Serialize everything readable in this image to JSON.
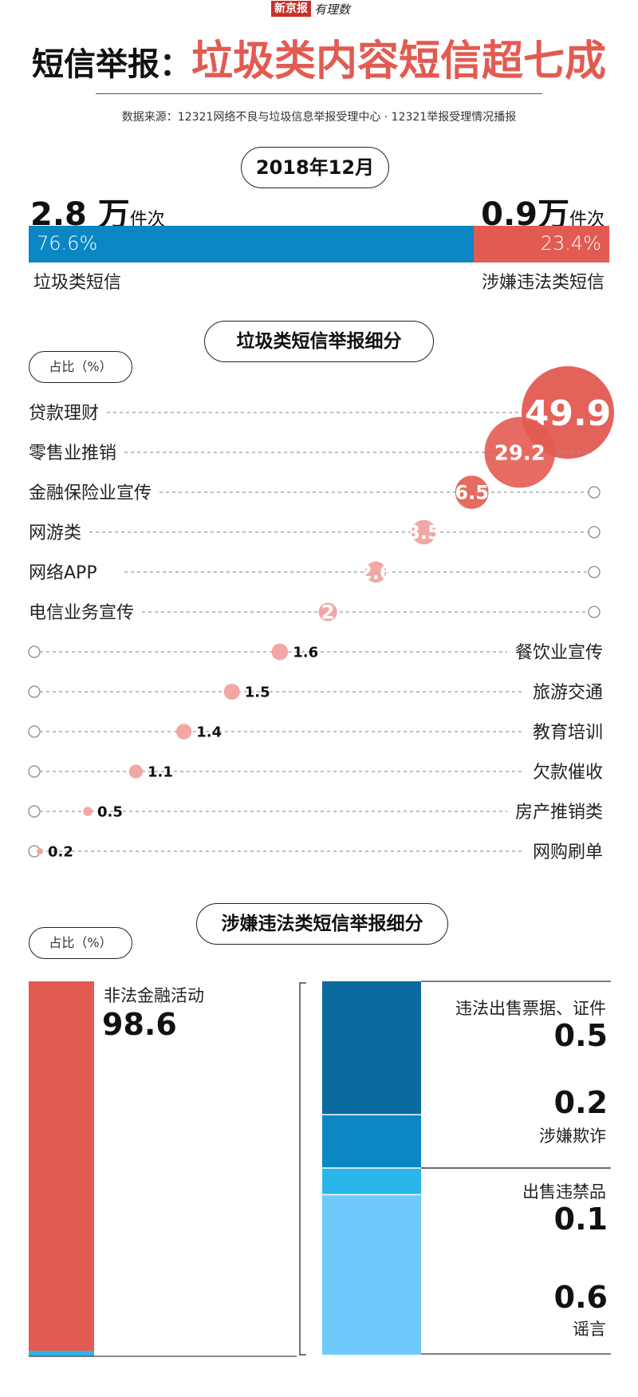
{
  "header": {
    "logo_text": "新京报",
    "logo_script": "有理数",
    "title_part1": "短信举报：",
    "title_part2": "垃圾类内容短信超七成",
    "source": "数据来源：12321网络不良与垃圾信息举报受理中心 · 12321举报受理情况播报",
    "date": "2018年12月"
  },
  "colors": {
    "spam": "#0a86c3",
    "illegal": "#e25b52",
    "bubble": "#e25b52",
    "bubble_light": "#f0a3a0",
    "dark_blue": "#0b6aa0",
    "mid_blue": "#0a86c3",
    "bright_blue": "#2ab6eb",
    "light_blue": "#6fcafc"
  },
  "summary": {
    "spam_value": "2.8",
    "spam_unit": "万",
    "spam_suffix": "件次",
    "illegal_value": "0.9",
    "illegal_unit": "万",
    "illegal_suffix": "件次",
    "spam_pct_label": "76.6%",
    "illegal_pct_label": "23.4%",
    "spam_label": "垃圾类短信",
    "illegal_label": "涉嫌违法类短信"
  },
  "section1": {
    "title": "垃圾类短信举报细分",
    "unit_pill": "占比（%）"
  },
  "section2": {
    "title": "涉嫌违法类短信举报细分",
    "unit_pill": "占比（%）"
  },
  "chart_data": [
    {
      "type": "bar",
      "stacked": true,
      "categories": [
        "垃圾类短信",
        "涉嫌违法类短信"
      ],
      "values": [
        76.6,
        23.4
      ],
      "counts_wan": [
        2.8,
        0.9
      ]
    },
    {
      "type": "scatter",
      "title": "垃圾类短信举报细分",
      "ylabel": "占比（%）",
      "categories": [
        "贷款理财",
        "零售业推销",
        "金融保险业宣传",
        "网游类",
        "网络APP",
        "电信业务宣传",
        "餐饮业宣传",
        "旅游交通",
        "教育培训",
        "欠款催收",
        "房产推销类",
        "网购刷单"
      ],
      "values": [
        49.9,
        29.2,
        6.5,
        3.5,
        2.6,
        2,
        1.6,
        1.5,
        1.4,
        1.1,
        0.5,
        0.2
      ]
    },
    {
      "type": "bar",
      "stacked": true,
      "title": "涉嫌违法类短信举报细分",
      "ylabel": "占比（%）",
      "categories": [
        "非法金融活动",
        "违法出售票据、证件",
        "涉嫌欺诈",
        "出售违禁品",
        "谣言"
      ],
      "values": [
        98.6,
        0.5,
        0.2,
        0.1,
        0.6
      ]
    }
  ]
}
